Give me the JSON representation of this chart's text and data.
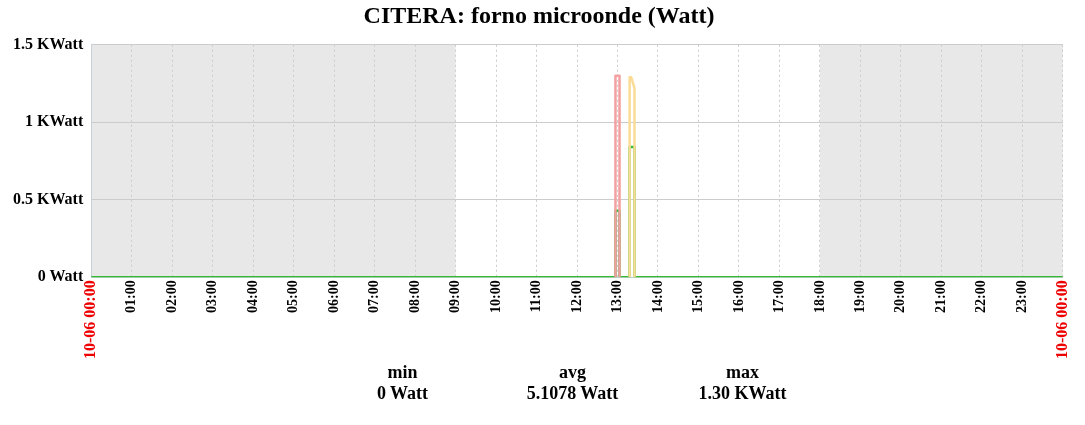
{
  "chart_data": {
    "type": "line",
    "title": "CITERA: forno microonde (Watt)",
    "xlim": [
      0,
      24
    ],
    "xticks": [
      {
        "value": 0,
        "label": "10-06 00:00"
      },
      {
        "value": 1,
        "label": "01:00"
      },
      {
        "value": 2,
        "label": "02:00"
      },
      {
        "value": 3,
        "label": "03:00"
      },
      {
        "value": 4,
        "label": "04:00"
      },
      {
        "value": 5,
        "label": "05:00"
      },
      {
        "value": 6,
        "label": "06:00"
      },
      {
        "value": 7,
        "label": "07:00"
      },
      {
        "value": 8,
        "label": "08:00"
      },
      {
        "value": 9,
        "label": "09:00"
      },
      {
        "value": 10,
        "label": "10:00"
      },
      {
        "value": 11,
        "label": "11:00"
      },
      {
        "value": 12,
        "label": "12:00"
      },
      {
        "value": 13,
        "label": "13:00"
      },
      {
        "value": 14,
        "label": "14:00"
      },
      {
        "value": 15,
        "label": "15:00"
      },
      {
        "value": 16,
        "label": "16:00"
      },
      {
        "value": 17,
        "label": "17:00"
      },
      {
        "value": 18,
        "label": "18:00"
      },
      {
        "value": 19,
        "label": "19:00"
      },
      {
        "value": 20,
        "label": "20:00"
      },
      {
        "value": 21,
        "label": "21:00"
      },
      {
        "value": 22,
        "label": "22:00"
      },
      {
        "value": 23,
        "label": "23:00"
      },
      {
        "value": 24,
        "label": "10-06 00:00"
      }
    ],
    "ylim": [
      0,
      1.5
    ],
    "yticks": [
      {
        "value": 0,
        "label": "0 Watt"
      },
      {
        "value": 0.5,
        "label": "0.5 KWatt"
      },
      {
        "value": 1,
        "label": "1 KWatt"
      },
      {
        "value": 1.5,
        "label": "1.5 KWatt"
      }
    ],
    "series": [
      {
        "color": "#f4a0a0",
        "x": [
          12.95,
          12.95,
          13.05,
          13.05
        ],
        "values": [
          0,
          1.3,
          1.3,
          0
        ]
      },
      {
        "color": "#fadc96",
        "x": [
          13.3,
          13.3,
          13.34,
          13.42,
          13.42
        ],
        "values": [
          0,
          1.29,
          1.29,
          1.22,
          0
        ]
      },
      {
        "color": "#33bb33",
        "x": [
          0,
          12.95,
          12.95,
          13.05,
          13.05,
          13.3,
          13.3,
          13.42,
          13.42,
          24
        ],
        "values": [
          0,
          0,
          0.43,
          0.43,
          0,
          0,
          0.84,
          0.84,
          0,
          0
        ]
      }
    ],
    "bands": [
      {
        "axis": "x",
        "from": 0,
        "to": 9,
        "color": "#e8e8e8"
      },
      {
        "axis": "x",
        "from": 18,
        "to": 24,
        "color": "#e8e8e8"
      }
    ],
    "grid": true,
    "line_style": "solid",
    "marker": "none",
    "legend": false,
    "annotations": [
      "min",
      "0 Watt",
      "avg",
      "5.1078 Watt",
      "max",
      "1.30 KWatt"
    ]
  }
}
